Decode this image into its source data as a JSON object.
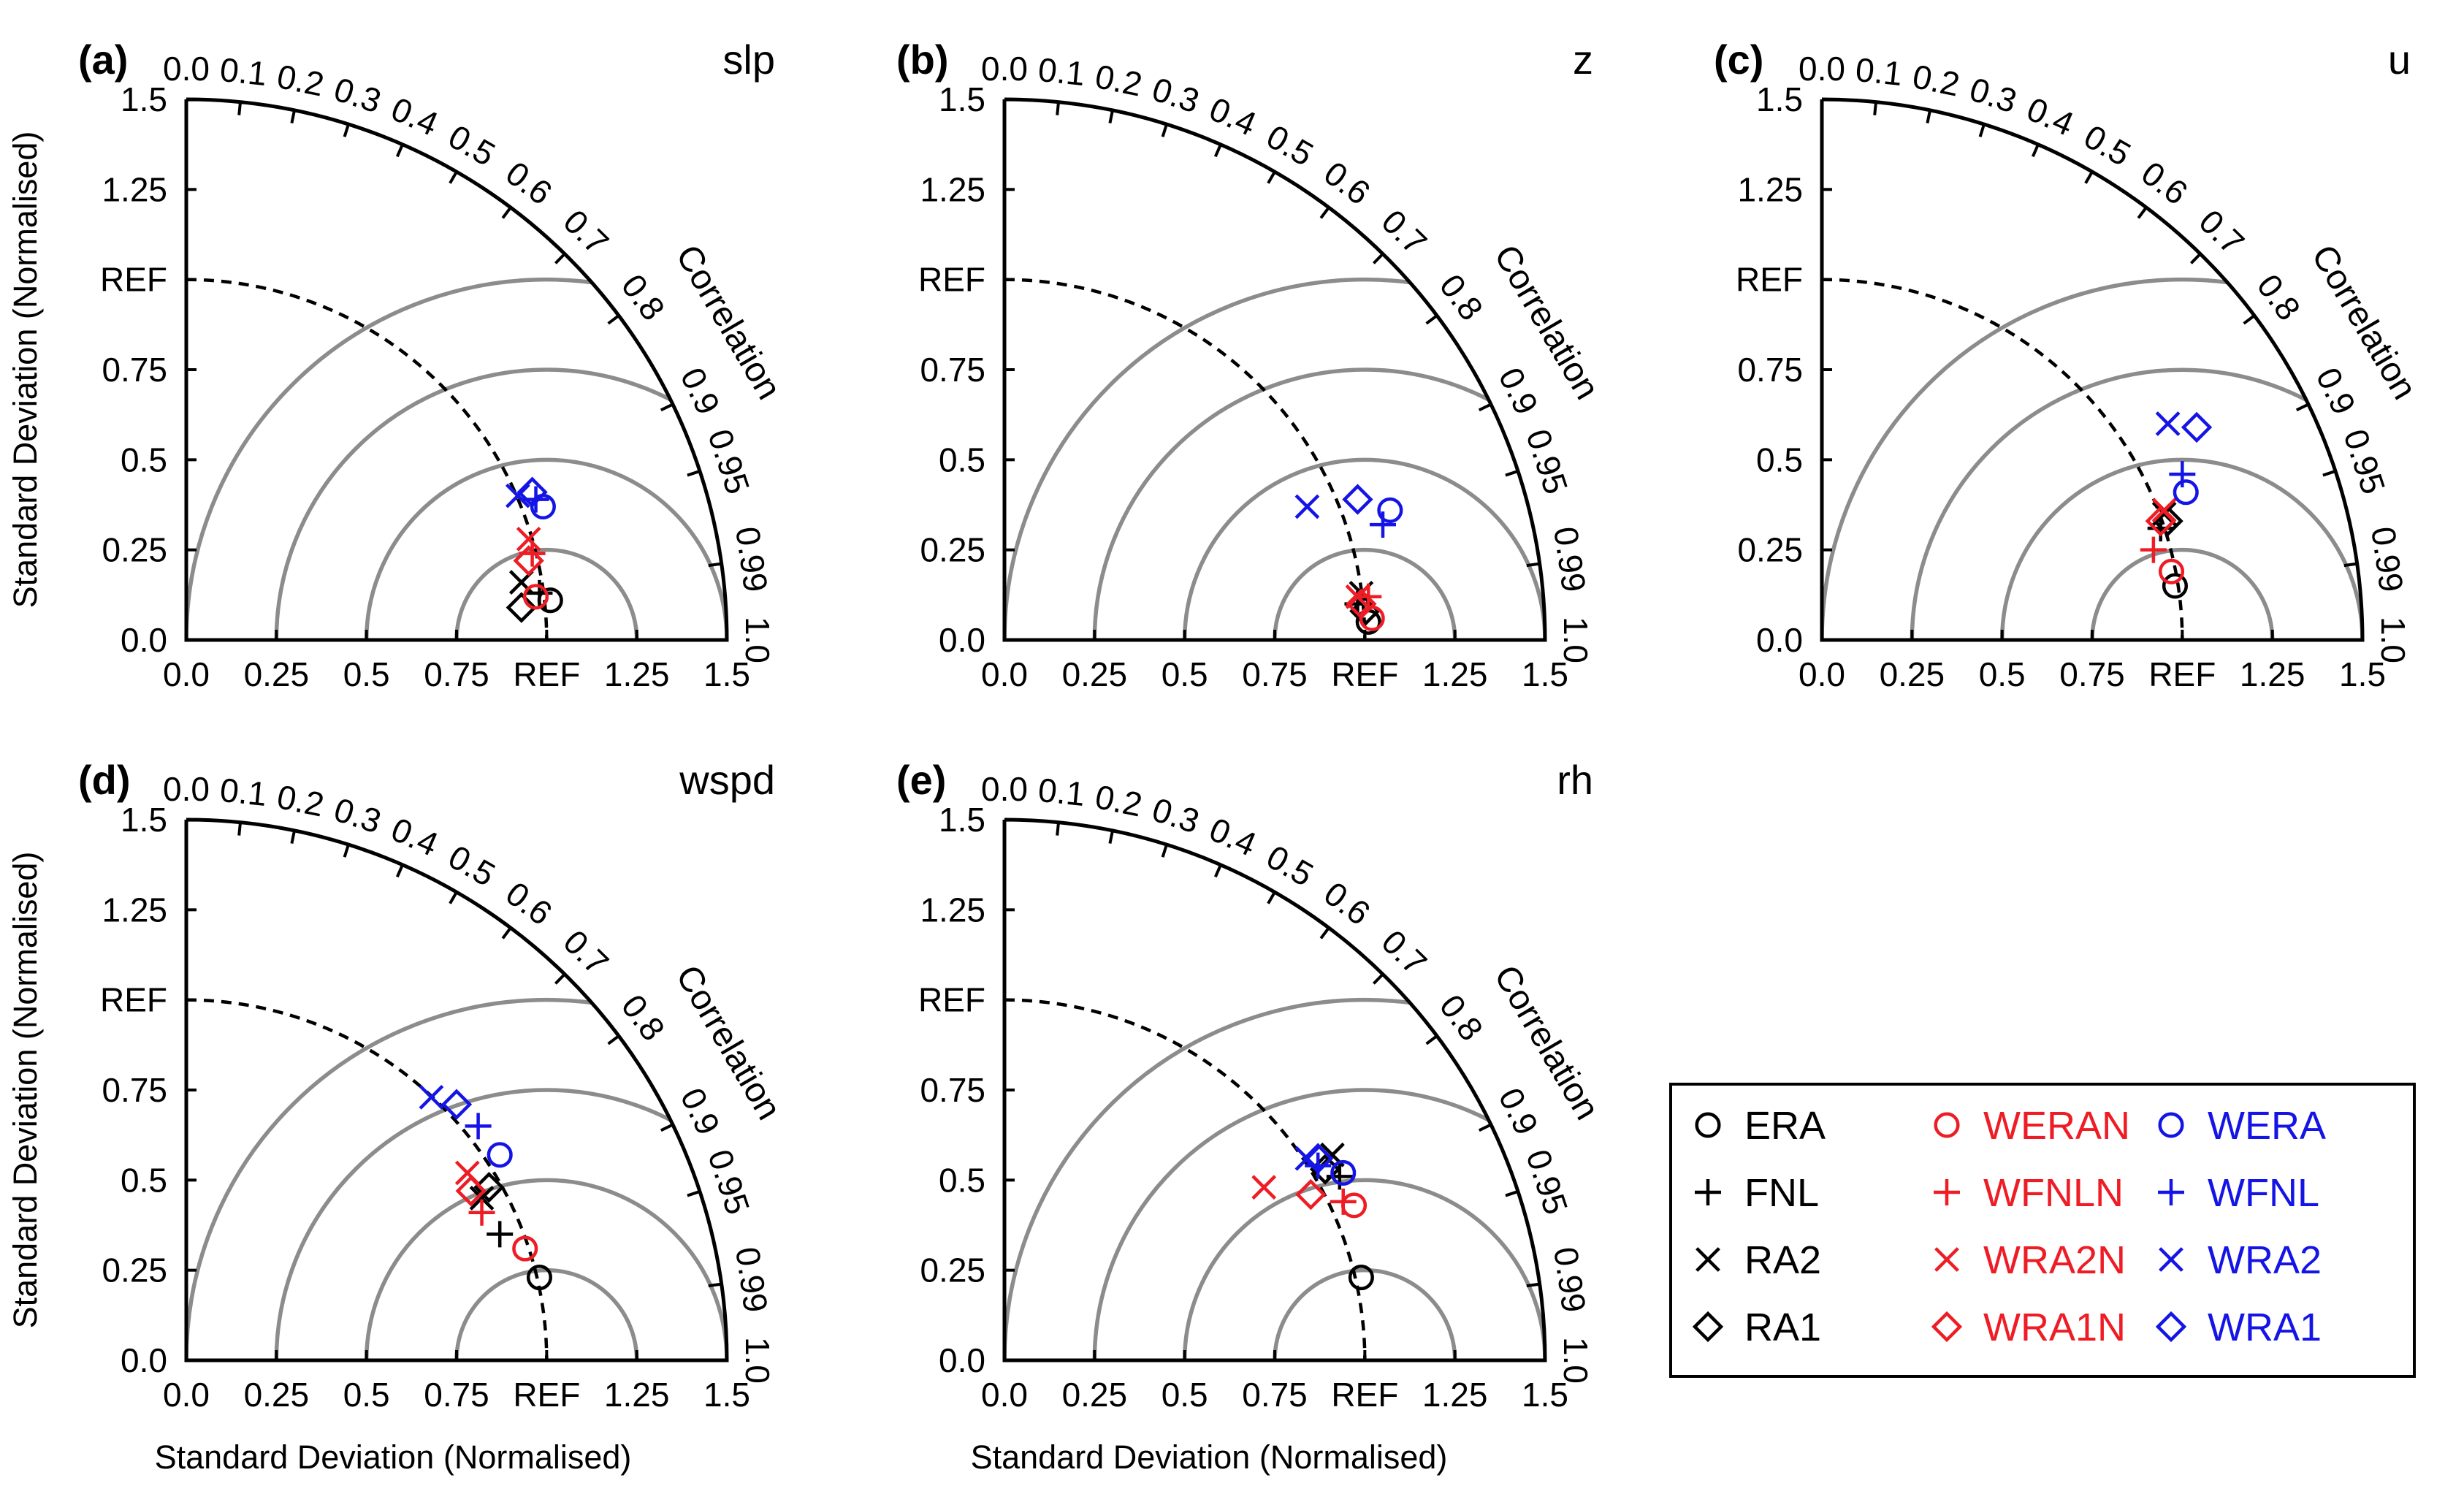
{
  "figure": {
    "ylabel": "Standard Deviation (Normalised)",
    "xlabel": "Standard Deviation (Normalised)",
    "correlation_label": "Correlation",
    "ref_label": "REF",
    "ref_value": 1.0,
    "std_ticks": [
      0.0,
      0.25,
      0.5,
      0.75,
      1.0,
      1.25,
      1.5
    ],
    "std_tick_labels": [
      "0.0",
      "0.25",
      "0.5",
      "0.75",
      "REF",
      "1.25",
      "1.5"
    ],
    "corr_ticks": [
      0.0,
      0.1,
      0.2,
      0.3,
      0.4,
      0.5,
      0.6,
      0.7,
      0.8,
      0.9,
      0.95,
      0.99,
      1.0
    ],
    "corr_tick_labels": [
      "0.0",
      "0.1",
      "0.2",
      "0.3",
      "0.4",
      "0.5",
      "0.6",
      "0.7",
      "0.8",
      "0.9",
      "0.95",
      "0.99",
      "1.0"
    ],
    "rms_arcs": [
      0.25,
      0.5,
      0.75,
      1.0
    ],
    "colors": {
      "black": "#000000",
      "red": "#ee1c24",
      "blue": "#1414e6",
      "grid": "#8c8c8c"
    }
  },
  "legend": {
    "entries": [
      {
        "label": "ERA",
        "marker": "circle",
        "color": "black"
      },
      {
        "label": "WERAN",
        "marker": "circle",
        "color": "red"
      },
      {
        "label": "WERA",
        "marker": "circle",
        "color": "blue"
      },
      {
        "label": "FNL",
        "marker": "plus",
        "color": "black"
      },
      {
        "label": "WFNLN",
        "marker": "plus",
        "color": "red"
      },
      {
        "label": "WFNL",
        "marker": "plus",
        "color": "blue"
      },
      {
        "label": "RA2",
        "marker": "x",
        "color": "black"
      },
      {
        "label": "WRA2N",
        "marker": "x",
        "color": "red"
      },
      {
        "label": "WRA2",
        "marker": "x",
        "color": "blue"
      },
      {
        "label": "RA1",
        "marker": "diamond",
        "color": "black"
      },
      {
        "label": "WRA1N",
        "marker": "diamond",
        "color": "red"
      },
      {
        "label": "WRA1",
        "marker": "diamond",
        "color": "blue"
      }
    ]
  },
  "chart_data": [
    {
      "type": "scatter",
      "subtype": "taylor",
      "panel": "(a)",
      "variable": "slp",
      "points": [
        {
          "name": "ERA",
          "x": 1.01,
          "y": 0.11
        },
        {
          "name": "FNL",
          "x": 0.98,
          "y": 0.13
        },
        {
          "name": "RA2",
          "x": 0.93,
          "y": 0.16
        },
        {
          "name": "RA1",
          "x": 0.93,
          "y": 0.09
        },
        {
          "name": "WERAN",
          "x": 0.97,
          "y": 0.12
        },
        {
          "name": "WFNLN",
          "x": 0.96,
          "y": 0.24
        },
        {
          "name": "WRA2N",
          "x": 0.95,
          "y": 0.28
        },
        {
          "name": "WRA1N",
          "x": 0.95,
          "y": 0.22
        },
        {
          "name": "WERA",
          "x": 0.99,
          "y": 0.37
        },
        {
          "name": "WFNL",
          "x": 0.97,
          "y": 0.39
        },
        {
          "name": "WRA2",
          "x": 0.92,
          "y": 0.4
        },
        {
          "name": "WRA1",
          "x": 0.96,
          "y": 0.41
        }
      ]
    },
    {
      "type": "scatter",
      "subtype": "taylor",
      "panel": "(b)",
      "variable": "z",
      "points": [
        {
          "name": "ERA",
          "x": 1.01,
          "y": 0.05
        },
        {
          "name": "FNL",
          "x": 0.98,
          "y": 0.1
        },
        {
          "name": "RA2",
          "x": 0.99,
          "y": 0.13
        },
        {
          "name": "RA1",
          "x": 1.0,
          "y": 0.08
        },
        {
          "name": "WERAN",
          "x": 1.02,
          "y": 0.06
        },
        {
          "name": "WFNLN",
          "x": 1.01,
          "y": 0.12
        },
        {
          "name": "WRA2N",
          "x": 0.98,
          "y": 0.12
        },
        {
          "name": "WRA1N",
          "x": 0.99,
          "y": 0.1
        },
        {
          "name": "WERA",
          "x": 1.07,
          "y": 0.36
        },
        {
          "name": "WFNL",
          "x": 1.05,
          "y": 0.32
        },
        {
          "name": "WRA2",
          "x": 0.84,
          "y": 0.37
        },
        {
          "name": "WRA1",
          "x": 0.98,
          "y": 0.39
        }
      ]
    },
    {
      "type": "scatter",
      "subtype": "taylor",
      "panel": "(c)",
      "variable": "u",
      "points": [
        {
          "name": "ERA",
          "x": 0.98,
          "y": 0.15
        },
        {
          "name": "FNL",
          "x": 0.94,
          "y": 0.31
        },
        {
          "name": "RA2",
          "x": 0.95,
          "y": 0.35
        },
        {
          "name": "RA1",
          "x": 0.96,
          "y": 0.33
        },
        {
          "name": "WERAN",
          "x": 0.97,
          "y": 0.19
        },
        {
          "name": "WFNLN",
          "x": 0.92,
          "y": 0.25
        },
        {
          "name": "WRA2N",
          "x": 0.95,
          "y": 0.36
        },
        {
          "name": "WRA1N",
          "x": 0.94,
          "y": 0.33
        },
        {
          "name": "WERA",
          "x": 1.01,
          "y": 0.41
        },
        {
          "name": "WFNL",
          "x": 1.0,
          "y": 0.46
        },
        {
          "name": "WRA2",
          "x": 0.96,
          "y": 0.6
        },
        {
          "name": "WRA1",
          "x": 1.04,
          "y": 0.59
        }
      ]
    },
    {
      "type": "scatter",
      "subtype": "taylor",
      "panel": "(d)",
      "variable": "wspd",
      "points": [
        {
          "name": "ERA",
          "x": 0.98,
          "y": 0.23
        },
        {
          "name": "FNL",
          "x": 0.87,
          "y": 0.35
        },
        {
          "name": "RA2",
          "x": 0.82,
          "y": 0.45
        },
        {
          "name": "RA1",
          "x": 0.84,
          "y": 0.48
        },
        {
          "name": "WERAN",
          "x": 0.94,
          "y": 0.31
        },
        {
          "name": "WFNLN",
          "x": 0.82,
          "y": 0.41
        },
        {
          "name": "WRA2N",
          "x": 0.78,
          "y": 0.52
        },
        {
          "name": "WRA1N",
          "x": 0.79,
          "y": 0.47
        },
        {
          "name": "WERA",
          "x": 0.87,
          "y": 0.57
        },
        {
          "name": "WFNL",
          "x": 0.81,
          "y": 0.65
        },
        {
          "name": "WRA2",
          "x": 0.68,
          "y": 0.73
        },
        {
          "name": "WRA1",
          "x": 0.75,
          "y": 0.71
        }
      ]
    },
    {
      "type": "scatter",
      "subtype": "taylor",
      "panel": "(e)",
      "variable": "rh",
      "points": [
        {
          "name": "ERA",
          "x": 0.99,
          "y": 0.23
        },
        {
          "name": "FNL",
          "x": 0.93,
          "y": 0.51
        },
        {
          "name": "RA2",
          "x": 0.91,
          "y": 0.57
        },
        {
          "name": "RA1",
          "x": 0.89,
          "y": 0.53
        },
        {
          "name": "WERAN",
          "x": 0.97,
          "y": 0.43
        },
        {
          "name": "WFNLN",
          "x": 0.94,
          "y": 0.44
        },
        {
          "name": "WRA2N",
          "x": 0.72,
          "y": 0.48
        },
        {
          "name": "WRA1N",
          "x": 0.85,
          "y": 0.46
        },
        {
          "name": "WERA",
          "x": 0.94,
          "y": 0.52
        },
        {
          "name": "WFNL",
          "x": 0.87,
          "y": 0.54
        },
        {
          "name": "WRA2",
          "x": 0.84,
          "y": 0.56
        },
        {
          "name": "WRA1",
          "x": 0.87,
          "y": 0.56
        }
      ]
    }
  ]
}
